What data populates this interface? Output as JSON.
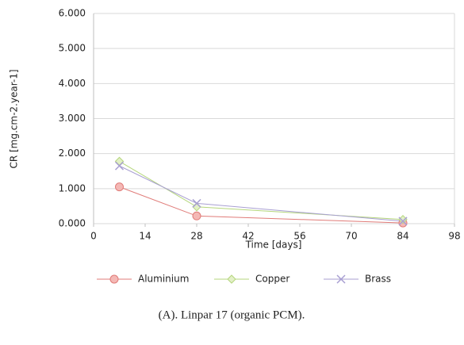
{
  "chart_data": {
    "type": "line",
    "caption": "(A). Linpar 17 (organic PCM).",
    "xlabel": "Time [days]",
    "ylabel": "CR [mg.cm-2.year-1]",
    "x": [
      7,
      28,
      84
    ],
    "series": [
      {
        "name": "Aluminium",
        "color": "#e07b78",
        "fill": "#f4b8b5",
        "marker": "circle",
        "values": [
          1.05,
          0.22,
          0.02
        ]
      },
      {
        "name": "Copper",
        "color": "#b5d67c",
        "fill": "#e3f0c8",
        "marker": "diamond",
        "values": [
          1.78,
          0.48,
          0.12
        ]
      },
      {
        "name": "Brass",
        "color": "#a89fd2",
        "fill": "#a89fd2",
        "marker": "x",
        "values": [
          1.65,
          0.58,
          0.07
        ]
      }
    ],
    "xlim": [
      0,
      98
    ],
    "xticks": [
      0,
      14,
      28,
      42,
      56,
      70,
      84,
      98
    ],
    "ylim": [
      0,
      6
    ],
    "yticks": [
      {
        "value": 0,
        "label": "0.000"
      },
      {
        "value": 1,
        "label": "1.000"
      },
      {
        "value": 2,
        "label": "2.000"
      },
      {
        "value": 3,
        "label": "3.000"
      },
      {
        "value": 4,
        "label": "4.000"
      },
      {
        "value": 5,
        "label": "5.000"
      },
      {
        "value": 6,
        "label": "6.000"
      }
    ],
    "grid": true,
    "legend": "bottom"
  }
}
